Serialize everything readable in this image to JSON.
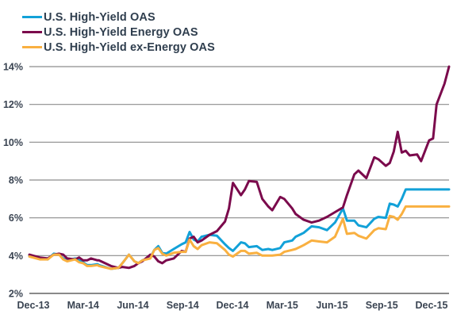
{
  "chart_data": {
    "type": "line",
    "title": "",
    "xlabel": "",
    "ylabel": "",
    "ylim": [
      2,
      14
    ],
    "yticks": [
      "2%",
      "4%",
      "6%",
      "8%",
      "10%",
      "12%",
      "14%"
    ],
    "ytick_values": [
      2,
      4,
      6,
      8,
      10,
      12,
      14
    ],
    "xticks": [
      "Dec-13",
      "Mar-14",
      "Jun-14",
      "Sep-14",
      "Dec-14",
      "Mar-15",
      "Jun-15",
      "Sep-15",
      "Dec-15"
    ],
    "x_range_quarters": [
      -0.08,
      8.35
    ],
    "grid": true,
    "legend_position": "top-left",
    "series": [
      {
        "name": "U.S. High-Yield OAS",
        "color": "#12a1d8",
        "x": [
          -0.08,
          0.13,
          0.29,
          0.41,
          0.52,
          0.6,
          0.68,
          0.84,
          0.92,
          1.0,
          1.08,
          1.16,
          1.29,
          1.32,
          1.56,
          1.71,
          1.79,
          1.92,
          2.03,
          2.11,
          2.19,
          2.35,
          2.43,
          2.51,
          2.59,
          2.67,
          2.82,
          2.98,
          3.06,
          3.14,
          3.22,
          3.3,
          3.38,
          3.54,
          3.69,
          3.85,
          3.93,
          4.01,
          4.17,
          4.25,
          4.33,
          4.49,
          4.6,
          4.72,
          4.8,
          4.96,
          5.04,
          5.2,
          5.27,
          5.43,
          5.59,
          5.74,
          5.9,
          6.06,
          6.22,
          6.3,
          6.45,
          6.53,
          6.69,
          6.85,
          6.93,
          7.08,
          7.16,
          7.24,
          7.32,
          7.4,
          7.48,
          7.56,
          7.71,
          7.79,
          7.95,
          8.03,
          8.1,
          8.26,
          8.35
        ],
        "values": [
          4.0,
          3.85,
          3.8,
          4.1,
          4.05,
          3.85,
          3.75,
          3.85,
          3.75,
          3.65,
          3.5,
          3.5,
          3.55,
          3.5,
          3.3,
          3.35,
          3.6,
          4.05,
          3.7,
          3.6,
          3.75,
          3.9,
          4.3,
          4.5,
          4.15,
          4.1,
          4.35,
          4.6,
          4.7,
          5.25,
          4.85,
          4.75,
          5.0,
          5.1,
          5.05,
          4.6,
          4.4,
          4.25,
          4.7,
          4.65,
          4.45,
          4.5,
          4.3,
          4.35,
          4.3,
          4.4,
          4.7,
          4.8,
          5.0,
          5.2,
          5.55,
          5.5,
          5.35,
          5.75,
          6.5,
          5.85,
          5.85,
          5.6,
          5.5,
          5.95,
          6.05,
          6.0,
          6.75,
          6.7,
          6.6,
          7.0,
          7.5,
          7.5,
          7.5,
          7.5,
          7.5,
          7.5,
          7.5,
          7.5,
          7.5
        ]
      },
      {
        "name": "U.S. High-Yield Energy OAS",
        "color": "#7b0a4c",
        "x": [
          -0.08,
          0.13,
          0.29,
          0.41,
          0.52,
          0.6,
          0.68,
          0.84,
          0.92,
          1.0,
          1.08,
          1.16,
          1.29,
          1.32,
          1.56,
          1.71,
          1.79,
          1.92,
          2.03,
          2.11,
          2.19,
          2.35,
          2.43,
          2.51,
          2.59,
          2.67,
          2.82,
          2.98,
          3.06,
          3.14,
          3.22,
          3.3,
          3.38,
          3.54,
          3.69,
          3.85,
          3.93,
          4.01,
          4.17,
          4.25,
          4.33,
          4.49,
          4.6,
          4.72,
          4.8,
          4.96,
          5.04,
          5.2,
          5.27,
          5.43,
          5.59,
          5.74,
          5.9,
          6.06,
          6.22,
          6.3,
          6.45,
          6.53,
          6.69,
          6.85,
          6.93,
          7.08,
          7.16,
          7.24,
          7.32,
          7.4,
          7.48,
          7.56,
          7.71,
          7.79,
          7.95,
          8.03,
          8.1,
          8.26,
          8.35
        ],
        "values": [
          4.05,
          3.9,
          3.85,
          4.05,
          4.1,
          4.05,
          3.85,
          3.8,
          3.9,
          3.75,
          3.75,
          3.85,
          3.75,
          3.75,
          3.45,
          3.35,
          3.4,
          3.35,
          3.45,
          3.6,
          3.7,
          4.05,
          3.95,
          3.7,
          3.6,
          3.75,
          3.85,
          4.25,
          4.2,
          4.9,
          5.0,
          4.7,
          4.8,
          5.1,
          5.3,
          5.8,
          6.5,
          7.85,
          7.2,
          7.5,
          7.95,
          7.9,
          7.0,
          6.6,
          6.4,
          7.1,
          7.0,
          6.5,
          6.2,
          5.9,
          5.75,
          5.85,
          6.05,
          6.3,
          6.55,
          7.2,
          8.3,
          8.5,
          8.1,
          9.2,
          9.1,
          8.75,
          8.9,
          9.5,
          10.55,
          9.45,
          9.55,
          9.3,
          9.35,
          9.0,
          10.1,
          10.2,
          12.0,
          13.1,
          14.0
        ]
      },
      {
        "name": "U.S. High-Yield ex-Energy OAS",
        "color": "#f9b040",
        "x": [
          -0.08,
          0.13,
          0.29,
          0.41,
          0.52,
          0.6,
          0.68,
          0.84,
          0.92,
          1.0,
          1.08,
          1.16,
          1.29,
          1.32,
          1.56,
          1.71,
          1.79,
          1.92,
          2.03,
          2.11,
          2.19,
          2.35,
          2.43,
          2.51,
          2.59,
          2.67,
          2.82,
          2.98,
          3.06,
          3.14,
          3.22,
          3.3,
          3.38,
          3.54,
          3.69,
          3.85,
          3.93,
          4.01,
          4.17,
          4.25,
          4.33,
          4.49,
          4.6,
          4.72,
          4.8,
          4.96,
          5.04,
          5.2,
          5.27,
          5.43,
          5.59,
          5.74,
          5.9,
          6.06,
          6.22,
          6.3,
          6.45,
          6.53,
          6.69,
          6.85,
          6.93,
          7.08,
          7.16,
          7.24,
          7.32,
          7.4,
          7.48,
          7.56,
          7.71,
          7.79,
          7.95,
          8.03,
          8.1,
          8.26,
          8.35
        ],
        "values": [
          3.95,
          3.8,
          3.8,
          4.05,
          4.05,
          3.8,
          3.7,
          3.8,
          3.65,
          3.6,
          3.45,
          3.45,
          3.5,
          3.45,
          3.3,
          3.35,
          3.6,
          4.05,
          3.7,
          3.6,
          3.75,
          3.85,
          4.3,
          4.4,
          4.1,
          4.0,
          4.15,
          4.2,
          4.2,
          4.85,
          4.5,
          4.35,
          4.55,
          4.7,
          4.65,
          4.3,
          4.05,
          3.95,
          4.25,
          4.25,
          4.1,
          4.15,
          4.0,
          4.0,
          4.0,
          4.05,
          4.2,
          4.3,
          4.35,
          4.55,
          4.8,
          4.75,
          4.7,
          5.0,
          5.95,
          5.15,
          5.2,
          5.05,
          4.9,
          5.35,
          5.45,
          5.4,
          6.1,
          6.05,
          5.9,
          6.2,
          6.6,
          6.6,
          6.6,
          6.6,
          6.6,
          6.6,
          6.6,
          6.6,
          6.6
        ]
      }
    ]
  }
}
